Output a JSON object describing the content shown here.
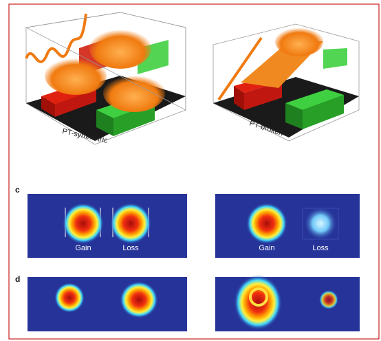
{
  "figure": {
    "top_left": {
      "caption": "PT-symmetric"
    },
    "top_right": {
      "caption": "PT-broken"
    },
    "panel_c": {
      "label": "c",
      "left": {
        "gain": "Gain",
        "loss": "Loss"
      },
      "right": {
        "gain": "Gain",
        "loss": "Loss"
      }
    },
    "panel_d": {
      "label": "d"
    }
  }
}
